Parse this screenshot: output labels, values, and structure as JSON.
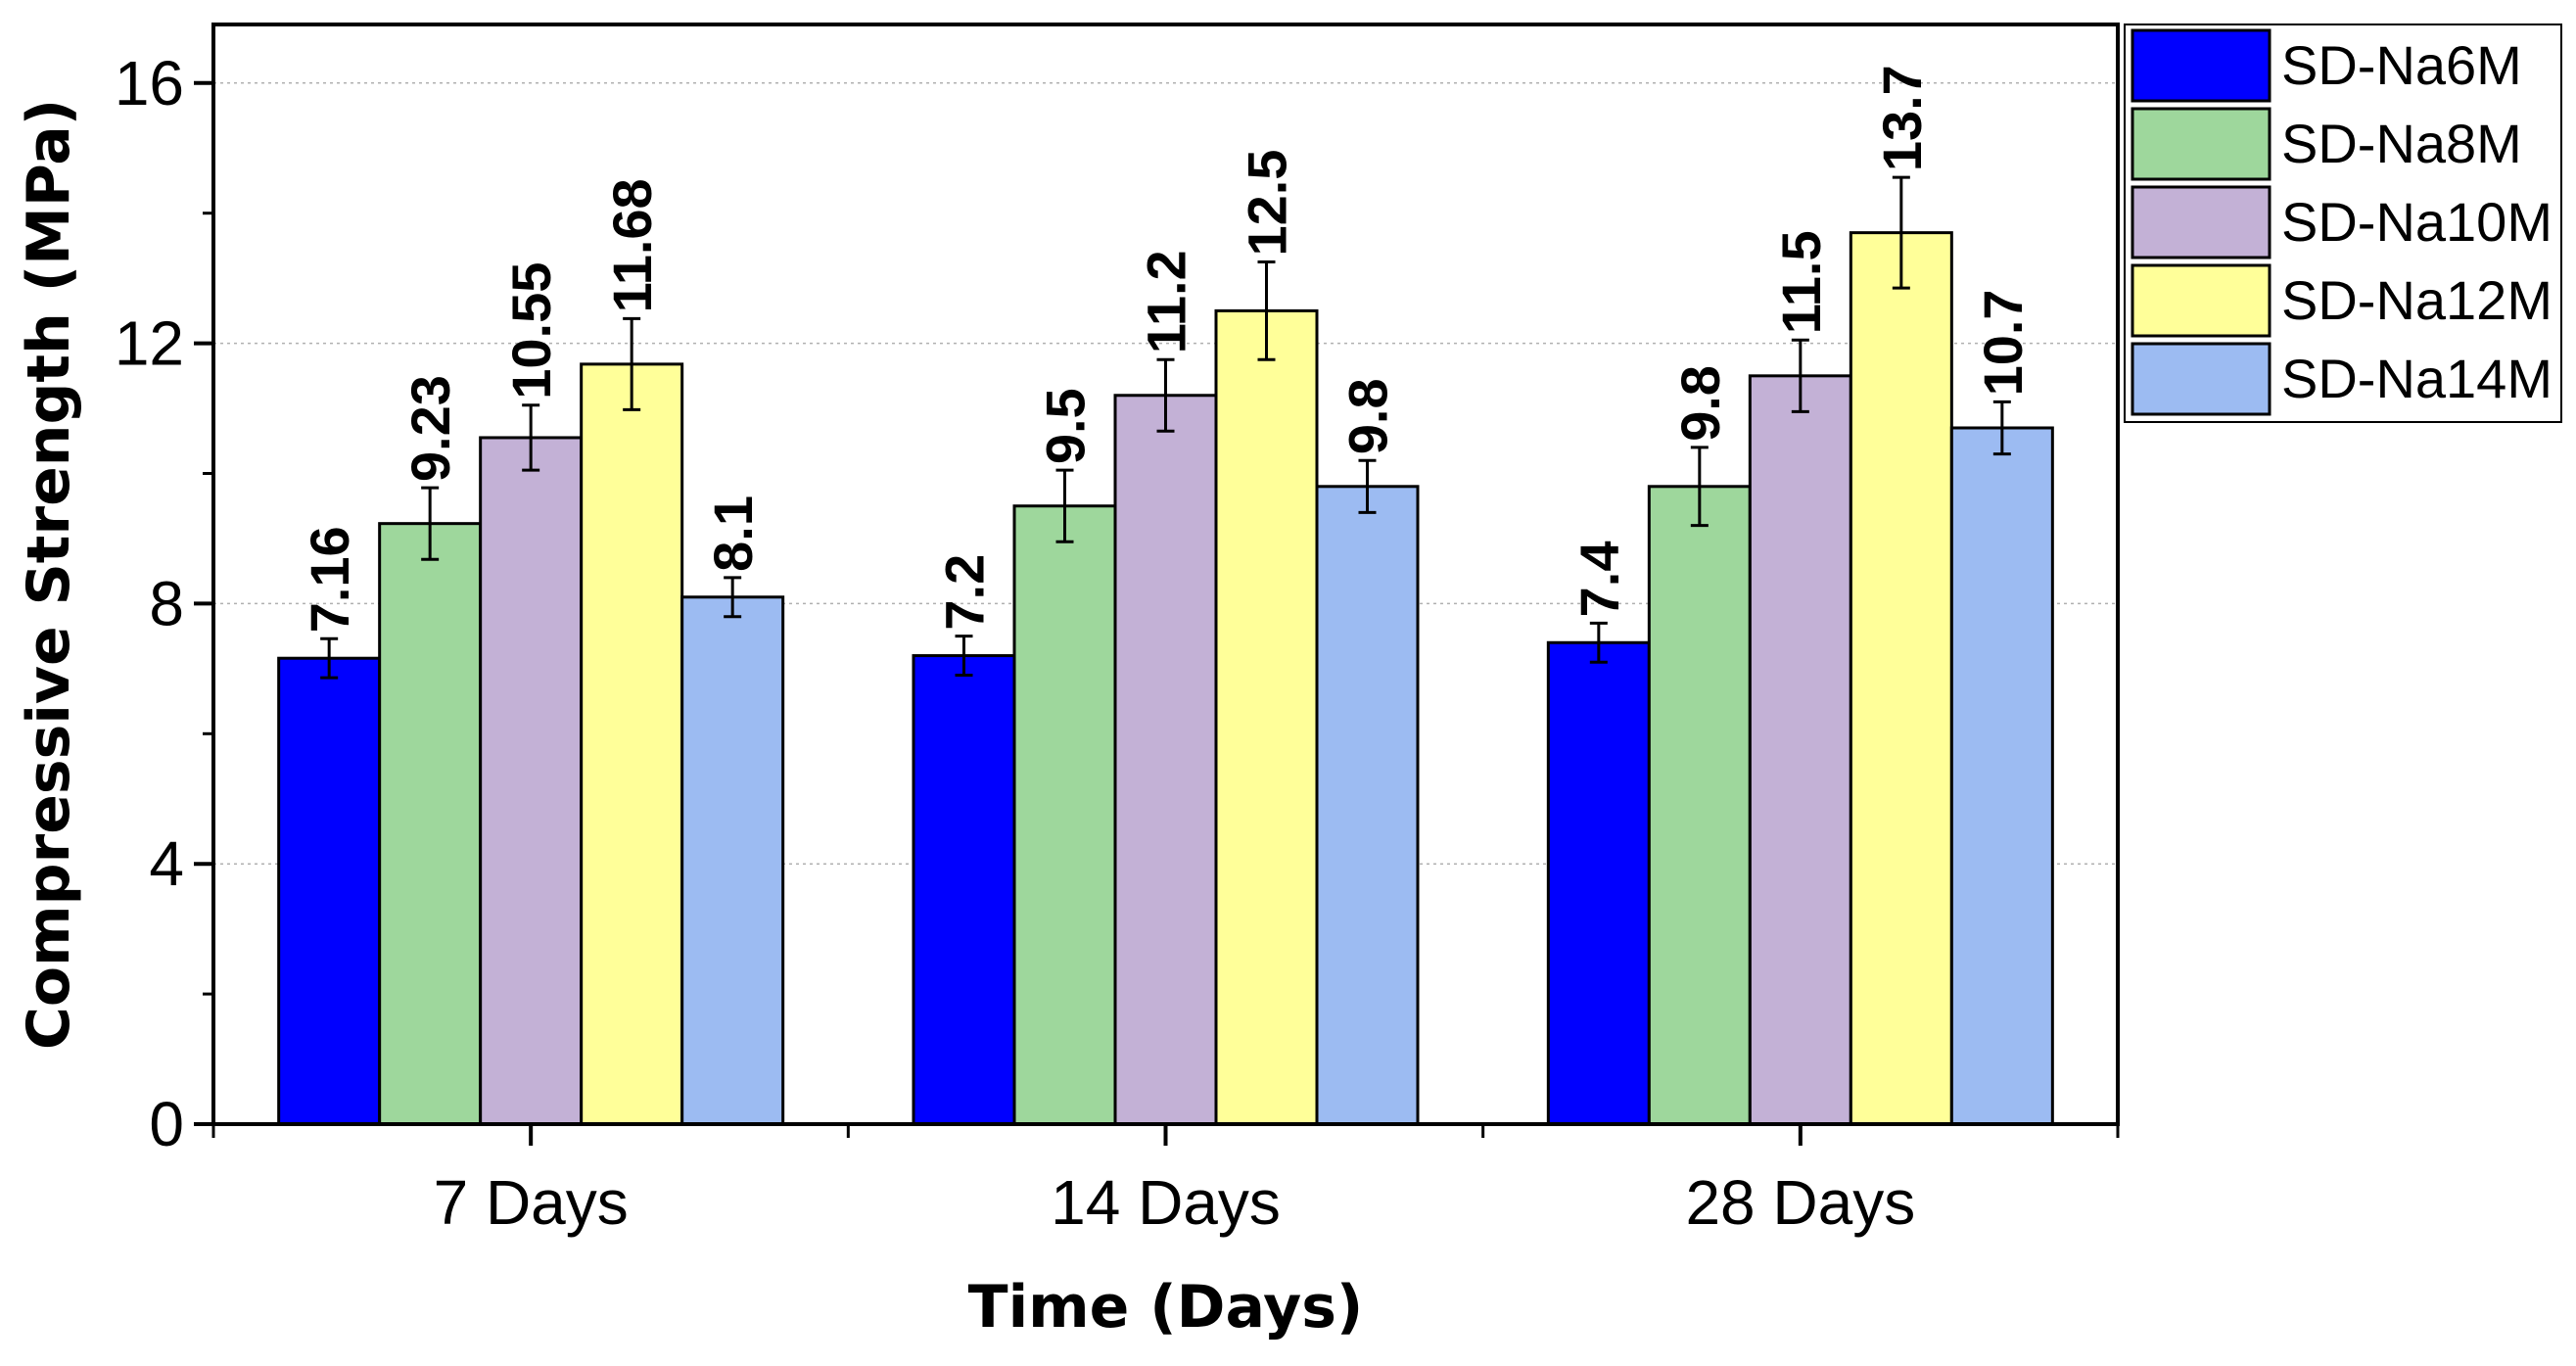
{
  "chart_data": {
    "type": "bar",
    "title": "",
    "xlabel": "Time (Days)",
    "ylabel": "Compressive Strength (MPa)",
    "categories": [
      "7 Days",
      "14 Days",
      "28 Days"
    ],
    "ylim": [
      0,
      16.9
    ],
    "yticks": [
      0,
      4,
      8,
      12,
      16
    ],
    "ytick_labels": [
      "0",
      "4",
      "8",
      "12",
      "16"
    ],
    "grid": "horizontal dotted",
    "legend_position": "top-right",
    "series": [
      {
        "name": "SD-Na6M",
        "color": "#0000ff",
        "values": [
          7.16,
          7.2,
          7.4
        ],
        "errors": [
          0.3,
          0.3,
          0.3
        ],
        "labels": [
          "7.16",
          "7.2",
          "7.4"
        ]
      },
      {
        "name": "SD-Na8M",
        "color": "#9ed79c",
        "values": [
          9.23,
          9.5,
          9.8
        ],
        "errors": [
          0.55,
          0.55,
          0.6
        ],
        "labels": [
          "9.23",
          "9.5",
          "9.8"
        ]
      },
      {
        "name": "SD-Na10M",
        "color": "#c3b1d6",
        "values": [
          10.55,
          11.2,
          11.5
        ],
        "errors": [
          0.5,
          0.55,
          0.55
        ],
        "labels": [
          "10.55",
          "11.2",
          "11.5"
        ]
      },
      {
        "name": "SD-Na12M",
        "color": "#ffff99",
        "values": [
          11.68,
          12.5,
          13.7
        ],
        "errors": [
          0.7,
          0.75,
          0.85
        ],
        "labels": [
          "11.68",
          "12.5",
          "13.7"
        ]
      },
      {
        "name": "SD-Na14M",
        "color": "#9cbbf2",
        "values": [
          8.1,
          9.8,
          10.7
        ],
        "errors": [
          0.3,
          0.4,
          0.4
        ],
        "labels": [
          "8.1",
          "9.8",
          "10.7"
        ]
      }
    ]
  }
}
